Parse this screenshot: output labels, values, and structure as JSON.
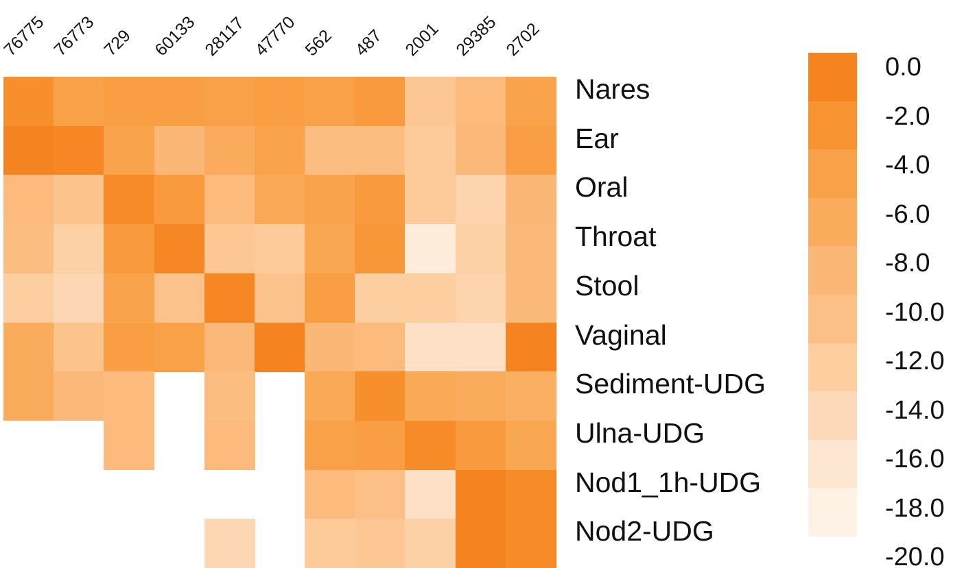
{
  "chart_data": {
    "type": "heatmap",
    "title": "",
    "xlabel": "",
    "ylabel": "",
    "columns": [
      "76775",
      "76773",
      "729",
      "60133",
      "28117",
      "47770",
      "562",
      "487",
      "2001",
      "29385",
      "2702"
    ],
    "rows": [
      "Nares",
      "Ear",
      "Oral",
      "Throat",
      "Stool",
      "Vaginal",
      "Sediment-UDG",
      "Ulna-UDG",
      "Nod1_1h-UDG",
      "Nod2-UDG"
    ],
    "values": [
      [
        -2.5,
        -5,
        -4.5,
        -4.5,
        -5,
        -4.5,
        -5,
        -4,
        -12,
        -10,
        -5.5
      ],
      [
        -1,
        -1.5,
        -5.5,
        -9,
        -7,
        -5.5,
        -10.5,
        -10.5,
        -12.5,
        -9.5,
        -4.5
      ],
      [
        -10,
        -11.5,
        -2,
        -4,
        -10,
        -6.5,
        -5.5,
        -4,
        -12.5,
        -14,
        -9
      ],
      [
        -10.5,
        -13.5,
        -4,
        -1.5,
        -12,
        -12.5,
        -6,
        -3.5,
        -18,
        -13.5,
        -9.5
      ],
      [
        -13,
        -14.5,
        -5.5,
        -11.5,
        -1.5,
        -11.5,
        -4.5,
        -13,
        -13,
        -14,
        -9.5
      ],
      [
        -7,
        -11.5,
        -4.5,
        -5,
        -9.5,
        -0.5,
        -9,
        -10,
        -16,
        -16,
        -1
      ],
      [
        -7,
        -9.5,
        -10,
        null,
        -10.5,
        null,
        -6.5,
        -2.5,
        -6.5,
        -7,
        -7.5
      ],
      [
        null,
        null,
        -10,
        null,
        -10,
        null,
        -5,
        -4.5,
        -2,
        -4,
        -6
      ],
      [
        null,
        null,
        null,
        null,
        null,
        null,
        -10,
        -11,
        -16,
        -0.5,
        -2
      ],
      [
        null,
        null,
        null,
        null,
        -14.5,
        null,
        -12.5,
        -12,
        -13.5,
        -1,
        -2
      ]
    ],
    "missing_cells_rendered_as": "white",
    "colorbar": {
      "position": "right",
      "vmax": 0.0,
      "vmin": -20.0,
      "tick_labels": [
        "0.0",
        "-2.0",
        "-4.0",
        "-6.0",
        "-8.0",
        "-10.0",
        "-12.0",
        "-14.0",
        "-16.0",
        "-18.0",
        "-20.0"
      ],
      "block_colors_top_to_bottom": [
        "#F5831F",
        "#F79331",
        "#F9A148",
        "#FAAC5C",
        "#FBB775",
        "#FCBF85",
        "#FDCEA0",
        "#FDD9B9",
        "#FEE7D2",
        "#FEF2E4"
      ]
    },
    "legend_position": "right",
    "grid": false
  },
  "figure": {
    "background_color": "#FFFFFF"
  }
}
